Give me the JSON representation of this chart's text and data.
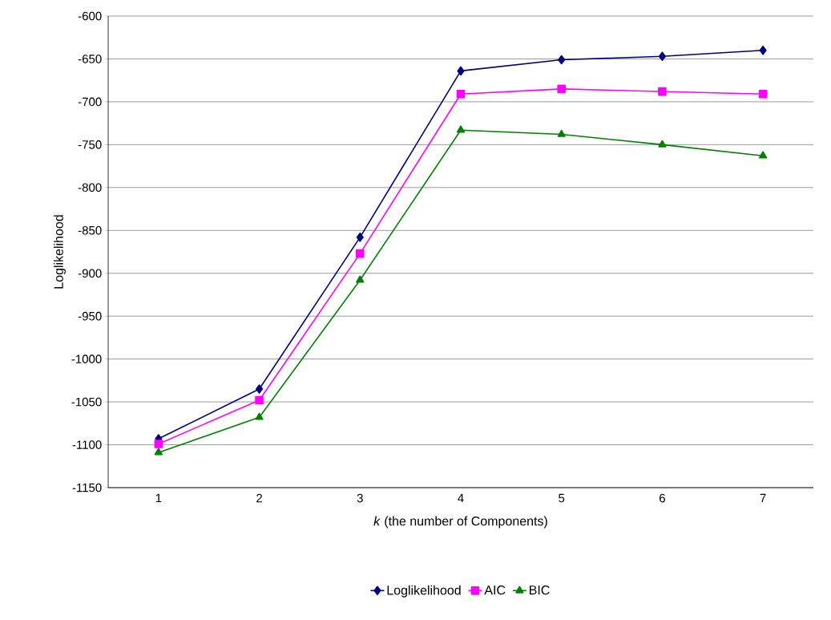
{
  "chart_data": {
    "type": "line",
    "xlabel": "*k*  (the number of Components)",
    "ylabel": "Loglikelihood",
    "categories": [
      "1",
      "2",
      "3",
      "4",
      "5",
      "6",
      "7"
    ],
    "series": [
      {
        "name": "Loglikelihood",
        "color": "#000080",
        "marker": "diamond",
        "values": [
          -1093,
          -1035,
          -858,
          -664,
          -651,
          -647,
          -640
        ]
      },
      {
        "name": "AIC",
        "color": "#ff00ff",
        "marker": "square",
        "values": [
          -1099,
          -1048,
          -877,
          -691,
          -685,
          -688,
          -691
        ]
      },
      {
        "name": "BIC",
        "color": "#008000",
        "marker": "triangle",
        "values": [
          -1109,
          -1068,
          -908,
          -733,
          -738,
          -750,
          -763
        ]
      }
    ],
    "ylim": [
      -1150,
      -600
    ],
    "yticks": [
      -1150,
      -1100,
      -1050,
      -1000,
      -950,
      -900,
      -850,
      -800,
      -750,
      -700,
      -650,
      -600
    ],
    "grid": "y",
    "legend": "bottom",
    "line_style": "solid"
  }
}
